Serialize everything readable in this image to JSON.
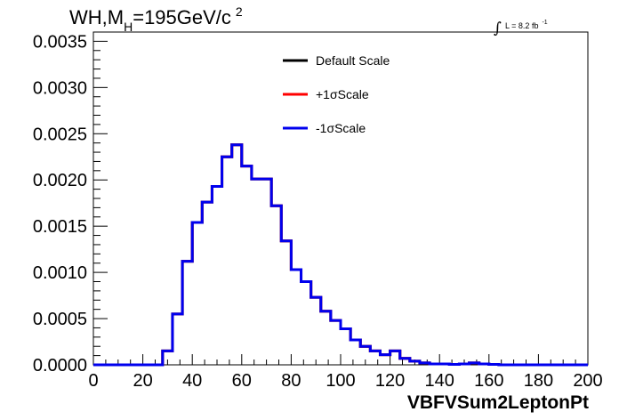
{
  "chart_data": {
    "type": "line",
    "title": {
      "prefix": "WH,M",
      "subscript": "H",
      "suffix": "=195GeV/c",
      "superscript": "2"
    },
    "luminosity": {
      "integral": "∫",
      "text": "L = 8.2 fb",
      "superscript": "-1"
    },
    "xlabel": "VBFVSum2LeptonPt",
    "ylabel": "",
    "xlim": [
      0,
      200
    ],
    "ylim": [
      0,
      0.0036
    ],
    "xticks": [
      0,
      20,
      40,
      60,
      80,
      100,
      120,
      140,
      160,
      180,
      200
    ],
    "xtick_labels": [
      "0",
      "20",
      "40",
      "60",
      "80",
      "100",
      "120",
      "140",
      "160",
      "180",
      "200"
    ],
    "yticks": [
      0,
      0.0005,
      0.001,
      0.0015,
      0.002,
      0.0025,
      0.003,
      0.0035
    ],
    "ytick_labels": [
      "0.0000",
      "0.0005",
      "0.0010",
      "0.0015",
      "0.0020",
      "0.0025",
      "0.0030",
      "0.0035"
    ],
    "grid": false,
    "legend_position": "top-center",
    "bin_edges": [
      0,
      4,
      8,
      12,
      16,
      20,
      24,
      28,
      32,
      36,
      40,
      44,
      48,
      52,
      56,
      60,
      64,
      68,
      72,
      76,
      80,
      84,
      88,
      92,
      96,
      100,
      104,
      108,
      112,
      116,
      120,
      124,
      128,
      132,
      136,
      140,
      144,
      148,
      152,
      156,
      160,
      164,
      168,
      172,
      176,
      180,
      184,
      188,
      192,
      196,
      200
    ],
    "series": [
      {
        "name": "Default Scale",
        "color": "#000000",
        "values": [
          0,
          0,
          0,
          0,
          0,
          0,
          0,
          0.00015,
          0.00055,
          0.00112,
          0.00154,
          0.00176,
          0.00193,
          0.00225,
          0.00238,
          0.00215,
          0.00201,
          0.00201,
          0.00172,
          0.00134,
          0.00103,
          0.0009,
          0.00073,
          0.00058,
          0.00048,
          0.00039,
          0.00027,
          0.0002,
          0.00015,
          0.00011,
          0.00015,
          7e-05,
          4e-05,
          2e-05,
          1e-05,
          1e-05,
          5e-06,
          1e-05,
          2e-05,
          1e-05,
          5e-06,
          0,
          0,
          0,
          0,
          0,
          0,
          0,
          0,
          0
        ]
      },
      {
        "name": "+1σScale",
        "color": "#ff0000",
        "values": [
          0,
          0,
          0,
          0,
          0,
          0,
          0,
          0.00015,
          0.00055,
          0.00112,
          0.00154,
          0.00176,
          0.00193,
          0.00225,
          0.00238,
          0.00215,
          0.00201,
          0.00201,
          0.00172,
          0.00134,
          0.00103,
          0.0009,
          0.00073,
          0.00058,
          0.00048,
          0.00039,
          0.00027,
          0.0002,
          0.00015,
          0.00011,
          0.00015,
          7e-05,
          4e-05,
          2e-05,
          1e-05,
          1e-05,
          5e-06,
          1e-05,
          2e-05,
          1e-05,
          5e-06,
          0,
          0,
          0,
          0,
          0,
          0,
          0,
          0,
          0
        ]
      },
      {
        "name": "-1σScale",
        "color": "#0000ee",
        "values": [
          0,
          0,
          0,
          0,
          0,
          0,
          0,
          0.00015,
          0.00055,
          0.00112,
          0.00154,
          0.00176,
          0.00193,
          0.00225,
          0.00238,
          0.00215,
          0.00201,
          0.00201,
          0.00172,
          0.00134,
          0.00103,
          0.0009,
          0.00073,
          0.00058,
          0.00048,
          0.00039,
          0.00027,
          0.0002,
          0.00015,
          0.00011,
          0.00015,
          7e-05,
          4e-05,
          2e-05,
          1e-05,
          1e-05,
          5e-06,
          1e-05,
          2e-05,
          1e-05,
          5e-06,
          0,
          0,
          0,
          0,
          0,
          0,
          0,
          0,
          0
        ]
      }
    ]
  }
}
